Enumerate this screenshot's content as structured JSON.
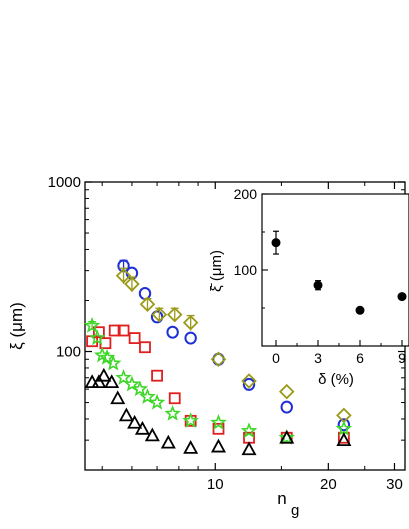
{
  "chart_data": [
    {
      "type": "scatter",
      "xlabel": "n",
      "xlabel_sub": "g",
      "ylabel": "ξ (μm)",
      "yscale": "log",
      "xscale": "log",
      "xlim": [
        4.5,
        32
      ],
      "ylim": [
        20,
        1000
      ],
      "grid": false,
      "legend": "none",
      "x_ticks": [
        10,
        20,
        30
      ],
      "x_tick_labels": [
        "10",
        "20",
        "30"
      ],
      "y_ticks": [
        100,
        1000
      ],
      "y_tick_labels": [
        "100",
        "1000"
      ],
      "series": [
        {
          "marker": "circle",
          "color": "#1f2fd8",
          "points": [
            {
              "x": 5.7,
              "y": 320,
              "err": 25
            },
            {
              "x": 6.0,
              "y": 290
            },
            {
              "x": 6.5,
              "y": 220
            },
            {
              "x": 7.0,
              "y": 160
            },
            {
              "x": 7.7,
              "y": 130
            },
            {
              "x": 8.6,
              "y": 120
            },
            {
              "x": 10.2,
              "y": 90
            },
            {
              "x": 12.3,
              "y": 64
            },
            {
              "x": 15.5,
              "y": 47
            },
            {
              "x": 22.0,
              "y": 37
            }
          ]
        },
        {
          "marker": "diamond",
          "color": "#9a9a18",
          "points": [
            {
              "x": 5.7,
              "y": 280,
              "err": 30
            },
            {
              "x": 6.0,
              "y": 250,
              "err": 25
            },
            {
              "x": 6.6,
              "y": 190,
              "err": 15
            },
            {
              "x": 7.1,
              "y": 165,
              "err": 15
            },
            {
              "x": 7.8,
              "y": 165,
              "err": 15
            },
            {
              "x": 8.6,
              "y": 148,
              "err": 15
            },
            {
              "x": 10.2,
              "y": 90
            },
            {
              "x": 12.3,
              "y": 67
            },
            {
              "x": 15.5,
              "y": 58
            },
            {
              "x": 22.0,
              "y": 42
            }
          ]
        },
        {
          "marker": "square",
          "color": "#e01e1e",
          "points": [
            {
              "x": 4.7,
              "y": 115
            },
            {
              "x": 4.9,
              "y": 130
            },
            {
              "x": 5.1,
              "y": 112
            },
            {
              "x": 5.4,
              "y": 133
            },
            {
              "x": 5.7,
              "y": 133
            },
            {
              "x": 6.1,
              "y": 120
            },
            {
              "x": 6.5,
              "y": 106
            },
            {
              "x": 7.0,
              "y": 72
            },
            {
              "x": 7.8,
              "y": 53
            },
            {
              "x": 8.6,
              "y": 39
            },
            {
              "x": 10.2,
              "y": 35
            },
            {
              "x": 12.3,
              "y": 31
            },
            {
              "x": 15.5,
              "y": 31
            },
            {
              "x": 22.0,
              "y": 31
            }
          ]
        },
        {
          "marker": "star",
          "color": "#3ed628",
          "points": [
            {
              "x": 4.7,
              "y": 142,
              "err": 8
            },
            {
              "x": 4.85,
              "y": 120
            },
            {
              "x": 5.0,
              "y": 95
            },
            {
              "x": 5.15,
              "y": 92
            },
            {
              "x": 5.35,
              "y": 85
            },
            {
              "x": 5.7,
              "y": 70
            },
            {
              "x": 6.0,
              "y": 64
            },
            {
              "x": 6.3,
              "y": 60
            },
            {
              "x": 6.6,
              "y": 54
            },
            {
              "x": 7.0,
              "y": 50
            },
            {
              "x": 7.7,
              "y": 43
            },
            {
              "x": 8.6,
              "y": 39
            },
            {
              "x": 10.2,
              "y": 38
            },
            {
              "x": 12.3,
              "y": 34
            },
            {
              "x": 15.5,
              "y": 31
            },
            {
              "x": 22.0,
              "y": 35
            }
          ]
        },
        {
          "marker": "triangle",
          "color": "#000000",
          "points": [
            {
              "x": 4.7,
              "y": 66
            },
            {
              "x": 4.9,
              "y": 66
            },
            {
              "x": 5.05,
              "y": 72
            },
            {
              "x": 5.3,
              "y": 66
            },
            {
              "x": 5.5,
              "y": 53
            },
            {
              "x": 5.8,
              "y": 42
            },
            {
              "x": 6.1,
              "y": 38
            },
            {
              "x": 6.4,
              "y": 35
            },
            {
              "x": 6.8,
              "y": 32
            },
            {
              "x": 7.5,
              "y": 29
            },
            {
              "x": 8.6,
              "y": 27
            },
            {
              "x": 10.2,
              "y": 27.5
            },
            {
              "x": 12.3,
              "y": 26.5
            },
            {
              "x": 15.5,
              "y": 31
            },
            {
              "x": 22.0,
              "y": 30
            }
          ]
        }
      ]
    },
    {
      "type": "scatter",
      "xlabel": "δ (%)",
      "ylabel": "ξ̄ (μm)",
      "xlim": [
        -1,
        9.5
      ],
      "ylim": [
        0,
        200
      ],
      "grid": false,
      "x_ticks": [
        0,
        3,
        6,
        9
      ],
      "x_tick_labels": [
        "0",
        "3",
        "6",
        "9"
      ],
      "y_ticks": [
        100,
        200
      ],
      "y_tick_labels": [
        "100",
        "200"
      ],
      "series": [
        {
          "marker": "filled-circle",
          "color": "#000000",
          "points": [
            {
              "x": 0,
              "y": 136,
              "err": 15
            },
            {
              "x": 3,
              "y": 80,
              "err": 6
            },
            {
              "x": 6,
              "y": 47
            },
            {
              "x": 9,
              "y": 65
            }
          ]
        }
      ]
    }
  ]
}
